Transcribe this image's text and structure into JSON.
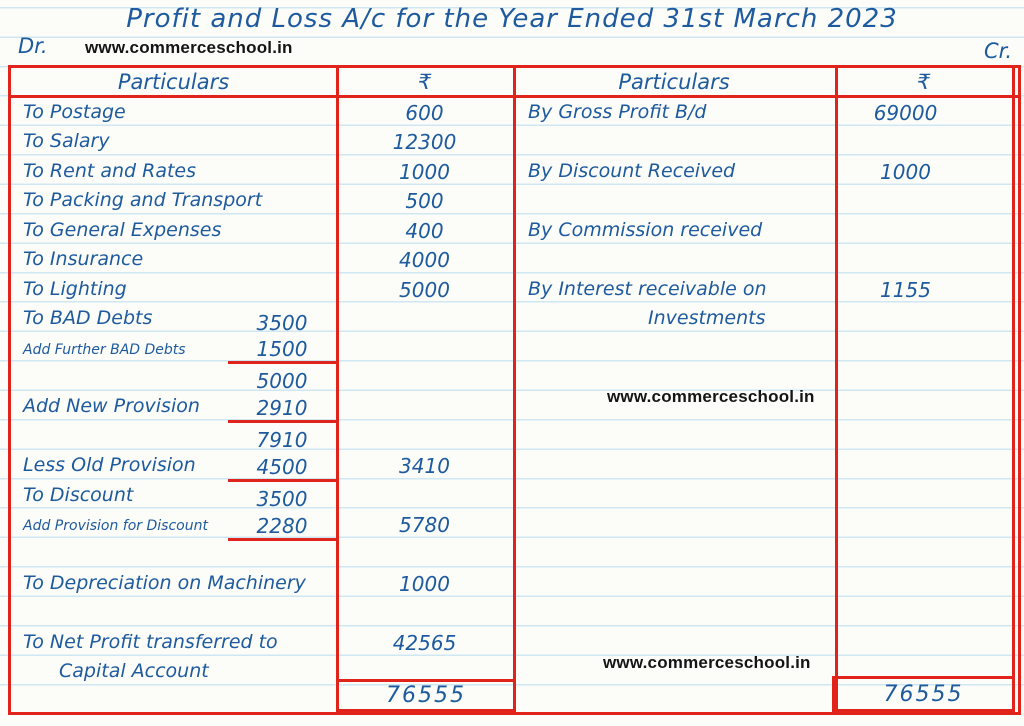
{
  "page": {
    "title": "Profit and Loss A/c for the Year Ended 31st March 2023",
    "dr_label": "Dr.",
    "cr_label": "Cr.",
    "watermarks": {
      "top": "www.commerceschool.in",
      "middle": "www.commerceschool.in",
      "bottom": "www.commerceschool.in"
    }
  },
  "headers": {
    "particulars_left": "Particulars",
    "amount_left": "₹",
    "particulars_right": "Particulars",
    "amount_right": "₹"
  },
  "debit": {
    "rows": [
      {
        "label": "To Postage",
        "amount": "600"
      },
      {
        "label": "To Salary",
        "amount": "12300"
      },
      {
        "label": "To Rent and Rates",
        "amount": "1000"
      },
      {
        "label": "To Packing and Transport",
        "amount": "500"
      },
      {
        "label": "To General Expenses",
        "amount": "400"
      },
      {
        "label": "To Insurance",
        "amount": "4000"
      },
      {
        "label": "To Lighting",
        "amount": "5000"
      },
      {
        "label": "To BAD Debts",
        "sub": "3500"
      },
      {
        "label": "Add Further BAD Debts",
        "sub": "1500",
        "sub_underline": true,
        "small": true
      },
      {
        "label": "",
        "sub": "5000"
      },
      {
        "label": "Add New Provision",
        "sub": "2910",
        "sub_underline": true
      },
      {
        "label": "",
        "sub": "7910"
      },
      {
        "label": "Less Old Provision",
        "sub": "4500",
        "sub_underline": true,
        "amount": "3410"
      },
      {
        "label": "To Discount",
        "sub": "3500"
      },
      {
        "label": "Add Provision for Discount",
        "sub": "2280",
        "sub_underline": true,
        "small": true,
        "amount": "5780"
      },
      {
        "label": ""
      },
      {
        "label": "To Depreciation on Machinery",
        "amount": "1000"
      },
      {
        "label": ""
      },
      {
        "label": "To Net Profit transferred to",
        "amount": "42565"
      },
      {
        "label": "Capital Account",
        "indent": true
      }
    ],
    "total": "76555"
  },
  "credit": {
    "rows": [
      {
        "label": "By Gross Profit B/d",
        "amount": "69000"
      },
      {
        "label": ""
      },
      {
        "label": "By Discount Received",
        "amount": "1000"
      },
      {
        "label": ""
      },
      {
        "label": "By Commission received"
      },
      {
        "label": ""
      },
      {
        "label": "By Interest receivable on",
        "amount": "1155"
      },
      {
        "label": "Investments",
        "indent": true
      }
    ],
    "total": "76555"
  },
  "colors": {
    "ink": "#1d5a9e",
    "red": "#e0231b",
    "rule": "#cfe7f2",
    "paper": "#fcfcf8",
    "watermark": "#151515"
  }
}
